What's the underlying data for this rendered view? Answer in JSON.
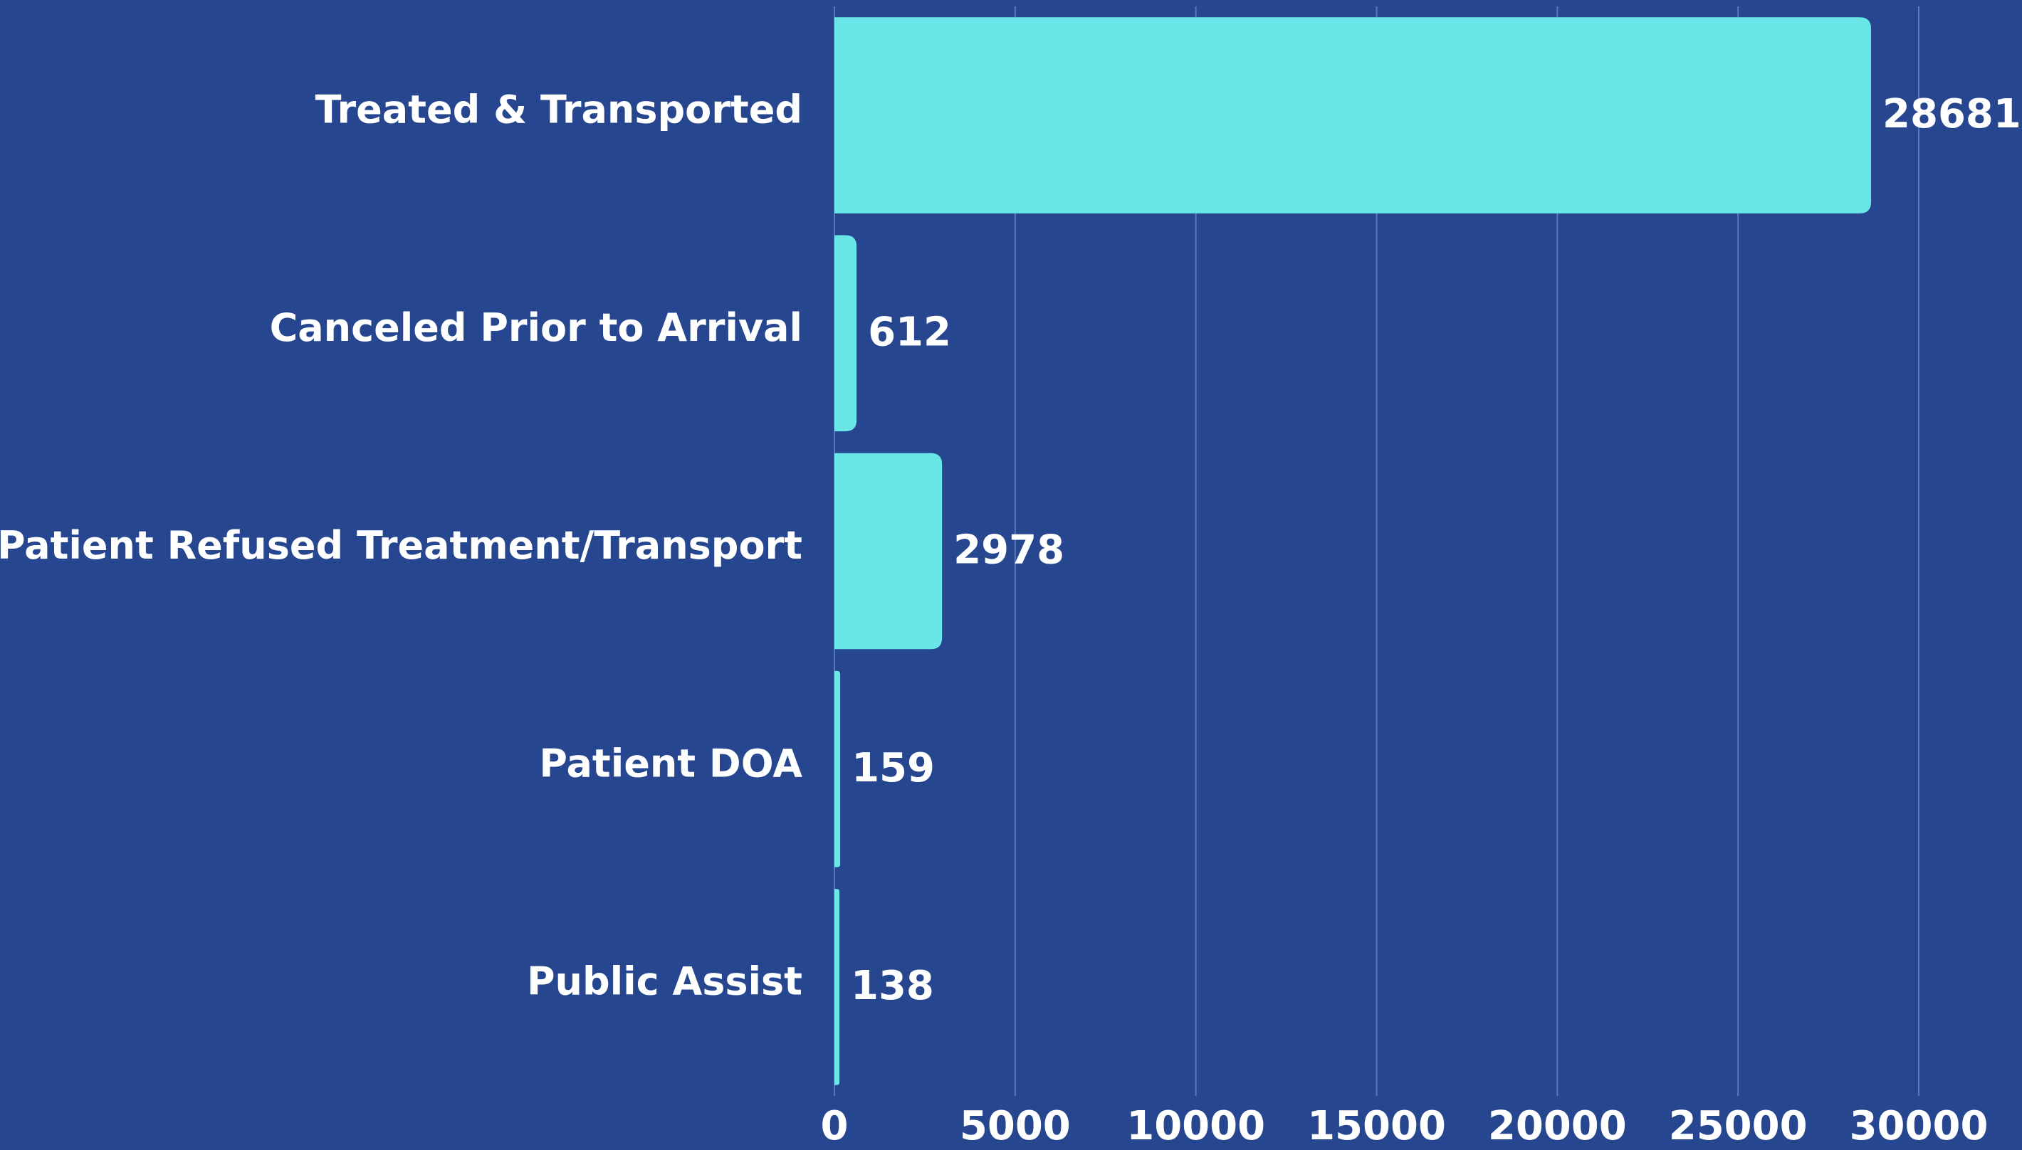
{
  "chart_data": {
    "type": "barh",
    "categories": [
      "Treated & Transported",
      "Canceled Prior to Arrival",
      "Patient Refused Treatment/Transport",
      "Patient DOA",
      "Public Assist"
    ],
    "values": [
      28681,
      612,
      2978,
      159,
      138
    ],
    "color": "#6ae6e9",
    "xlim": [
      0,
      30000
    ],
    "xticks": [
      0,
      5000,
      10000,
      15000,
      20000,
      25000,
      30000
    ],
    "grid": true
  }
}
